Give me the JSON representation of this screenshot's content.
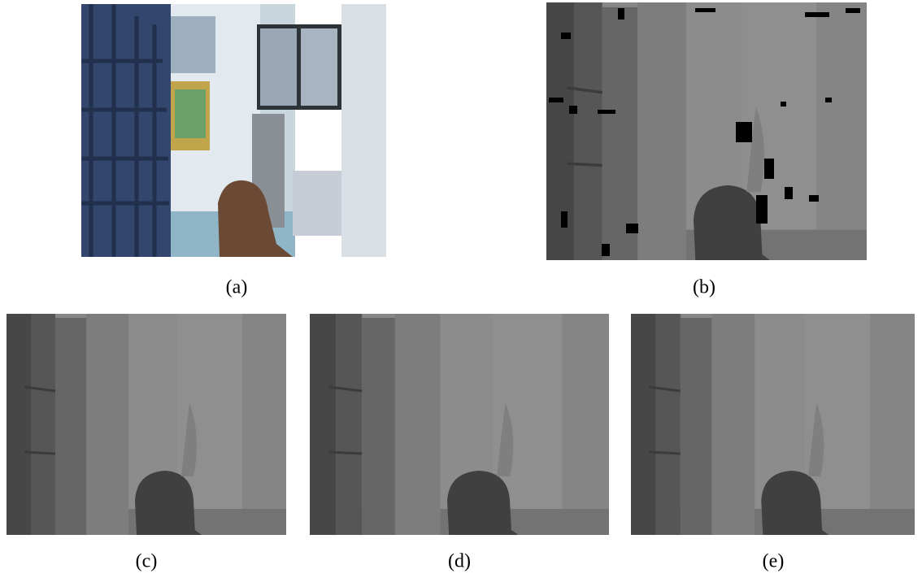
{
  "panels": [
    {
      "caption": "(a)"
    },
    {
      "caption": "(b)"
    },
    {
      "caption": "(c)"
    },
    {
      "caption": "(d)"
    },
    {
      "caption": "(e)"
    }
  ]
}
